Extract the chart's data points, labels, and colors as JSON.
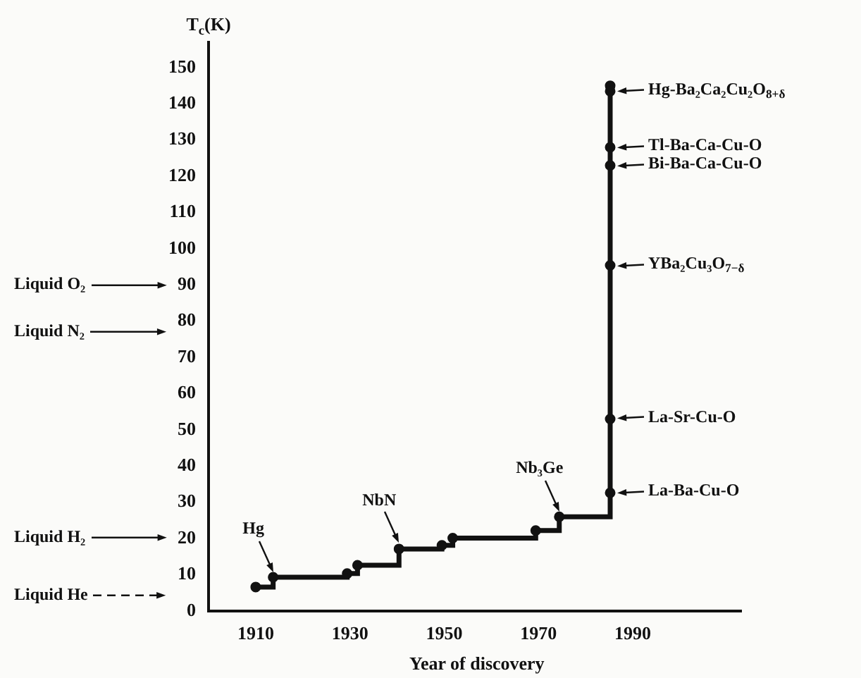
{
  "chart_data": {
    "type": "step",
    "xlabel": "Year of discovery",
    "ylabel": "T$_{c}$(K)",
    "x": [
      1910,
      1913.7,
      1929.4,
      1931.6,
      1940.4,
      1949.5,
      1951.8,
      1969.4,
      1974.4,
      1985.2,
      1985.2,
      1985.2,
      1985.2,
      1985.2,
      1985.2,
      1985.2
    ],
    "values": [
      6.6,
      9.3,
      10.3,
      12.6,
      17.1,
      18.1,
      20.1,
      22.2,
      26,
      32.6,
      53,
      95.4,
      123,
      128,
      143.5,
      145
    ],
    "color": "#111111",
    "marker": "circle",
    "grid": false,
    "xlim": [
      1900,
      2013
    ],
    "xticks": [
      1910,
      1930,
      1950,
      1970,
      1990
    ],
    "ylim": [
      0,
      157
    ],
    "yticks": [
      0,
      10,
      20,
      30,
      40,
      50,
      60,
      70,
      80,
      90,
      100,
      110,
      120,
      130,
      140,
      150
    ],
    "ref_lines": [
      {
        "axis": "y",
        "value": 90,
        "label": "Liquid O₂"
      },
      {
        "axis": "y",
        "value": 77,
        "label": "Liquid N₂"
      },
      {
        "axis": "y",
        "value": 20.3,
        "label": "Liquid H₂"
      },
      {
        "axis": "y",
        "value": 4.2,
        "label": "Liquid He",
        "line_style": "dashed"
      }
    ],
    "annotations": [
      {
        "text": "Hg",
        "x": 1913.7,
        "y": 9.3
      },
      {
        "text": "NbN",
        "x": 1940.4,
        "y": 17.1
      },
      {
        "text": "Nb₃Ge",
        "x": 1974.4,
        "y": 26
      },
      {
        "text": "La-Ba-Cu-O",
        "x": 1985.2,
        "y": 32.6
      },
      {
        "text": "La-Sr-Cu-O",
        "x": 1985.2,
        "y": 53
      },
      {
        "text": "YBa₂Cu₃O$_{7−δ}$",
        "x": 1985.2,
        "y": 95.4
      },
      {
        "text": "Bi-Ba-Ca-Cu-O",
        "x": 1985.2,
        "y": 123
      },
      {
        "text": "Tl-Ba-Ca-Cu-O",
        "x": 1985.2,
        "y": 128
      },
      {
        "text": "Hg-Ba₂Ca₂Cu₂O$_{8+δ}$",
        "x": 1985.2,
        "y": 143.5
      }
    ]
  }
}
